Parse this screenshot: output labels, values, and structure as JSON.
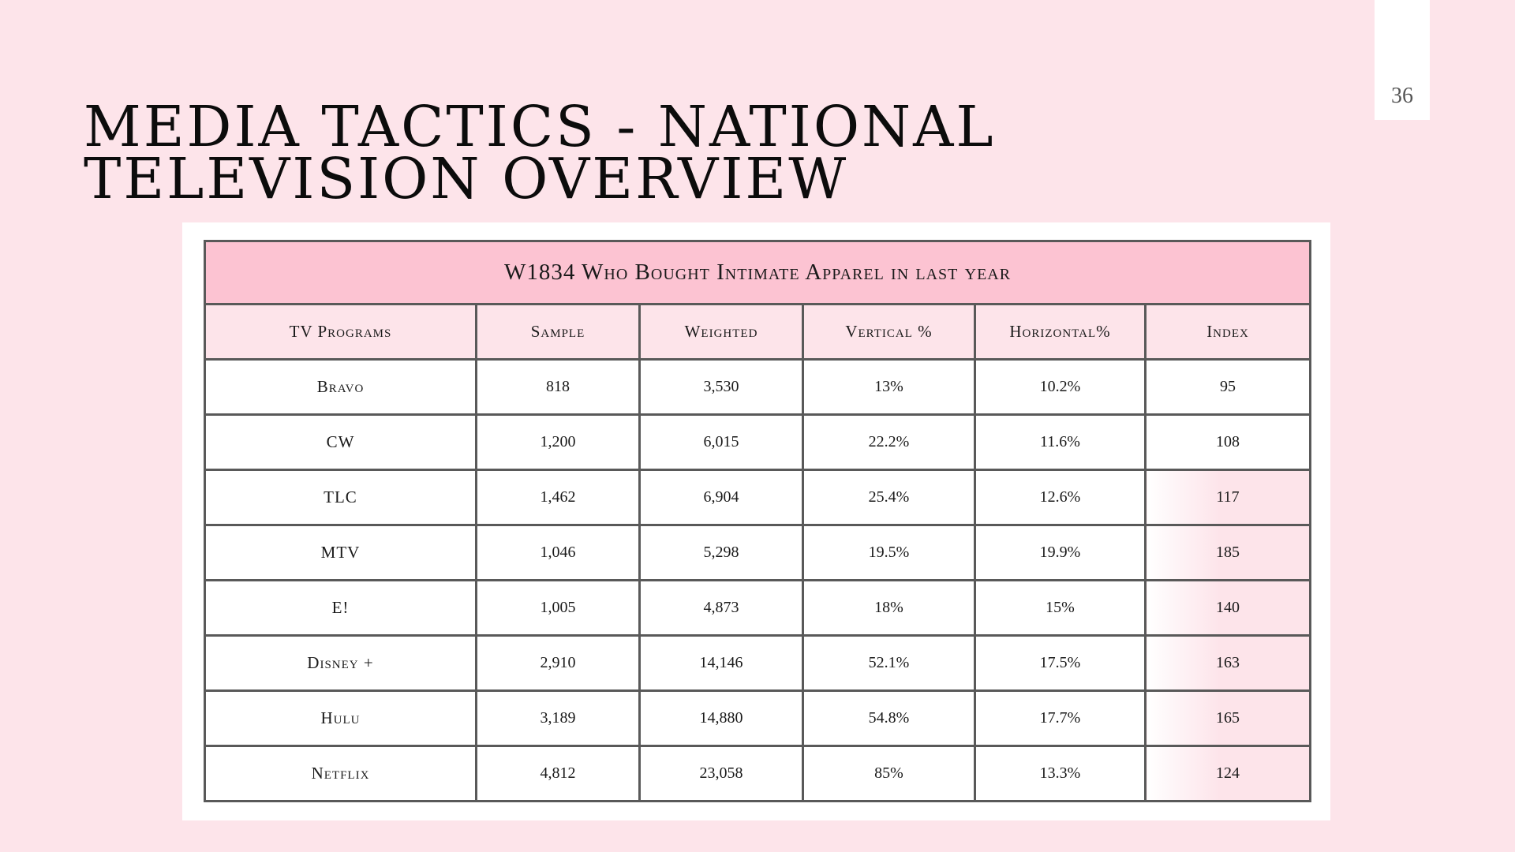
{
  "slide": {
    "title": "Media Tactics - National Television Overview",
    "page_number": "36"
  },
  "table": {
    "caption": "W1834 Who Bought Intimate Apparel in last year",
    "columns": [
      "TV Programs",
      "Sample",
      "Weighted",
      "Vertical %",
      "Horizontal%",
      "Index"
    ],
    "rows": [
      [
        "Bravo",
        "818",
        "3,530",
        "13%",
        "10.2%",
        "95"
      ],
      [
        "CW",
        "1,200",
        "6,015",
        "22.2%",
        "11.6%",
        "108"
      ],
      [
        "TLC",
        "1,462",
        "6,904",
        "25.4%",
        "12.6%",
        "117"
      ],
      [
        "MTV",
        "1,046",
        "5,298",
        "19.5%",
        "19.9%",
        "185"
      ],
      [
        "E!",
        "1,005",
        "4,873",
        "18%",
        "15%",
        "140"
      ],
      [
        "Disney +",
        "2,910",
        "14,146",
        "52.1%",
        "17.5%",
        "163"
      ],
      [
        "Hulu",
        "3,189",
        "14,880",
        "54.8%",
        "17.7%",
        "165"
      ],
      [
        "Netflix",
        "4,812",
        "23,058",
        "85%",
        "13.3%",
        "124"
      ]
    ],
    "colors": {
      "caption_bg": "#fcc3d2",
      "header_bg": "#fde4ea",
      "highlight_bg": "#fde4ea"
    }
  }
}
